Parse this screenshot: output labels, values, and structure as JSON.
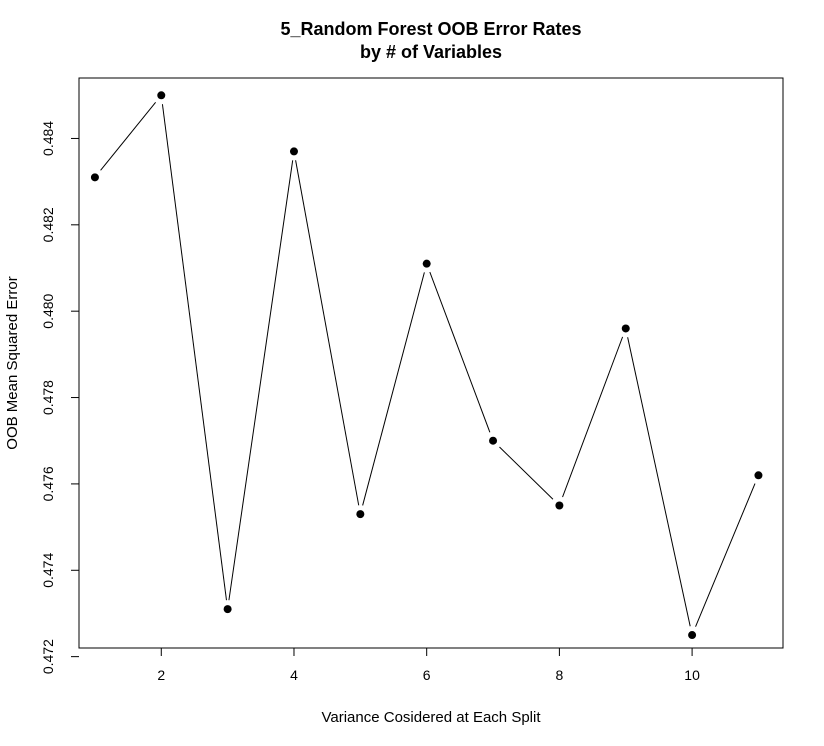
{
  "chart_data": {
    "type": "line",
    "title_line1": "5_Random Forest OOB Error Rates",
    "title_line2": "by # of Variables",
    "xlabel": "Variance Cosidered at Each Split",
    "ylabel": "OOB Mean Squared Error",
    "x": [
      1,
      2,
      3,
      4,
      5,
      6,
      7,
      8,
      9,
      10,
      11
    ],
    "y": [
      0.4831,
      0.485,
      0.4731,
      0.4837,
      0.4753,
      0.4811,
      0.477,
      0.4755,
      0.4796,
      0.4725,
      0.4762
    ],
    "xlim": [
      0.76,
      11.37
    ],
    "ylim": [
      0.4722,
      0.4854
    ],
    "xticks": [
      2,
      4,
      6,
      8,
      10
    ],
    "xtick_labels": [
      "2",
      "4",
      "6",
      "8",
      "10"
    ],
    "yticks": [
      0.472,
      0.474,
      0.476,
      0.478,
      0.48,
      0.482,
      0.484
    ],
    "ytick_labels": [
      "0.472",
      "0.474",
      "0.476",
      "0.478",
      "0.480",
      "0.482",
      "0.484"
    ],
    "grid": false,
    "legend": "none",
    "line_color": "#000000",
    "point_color": "#000000"
  }
}
